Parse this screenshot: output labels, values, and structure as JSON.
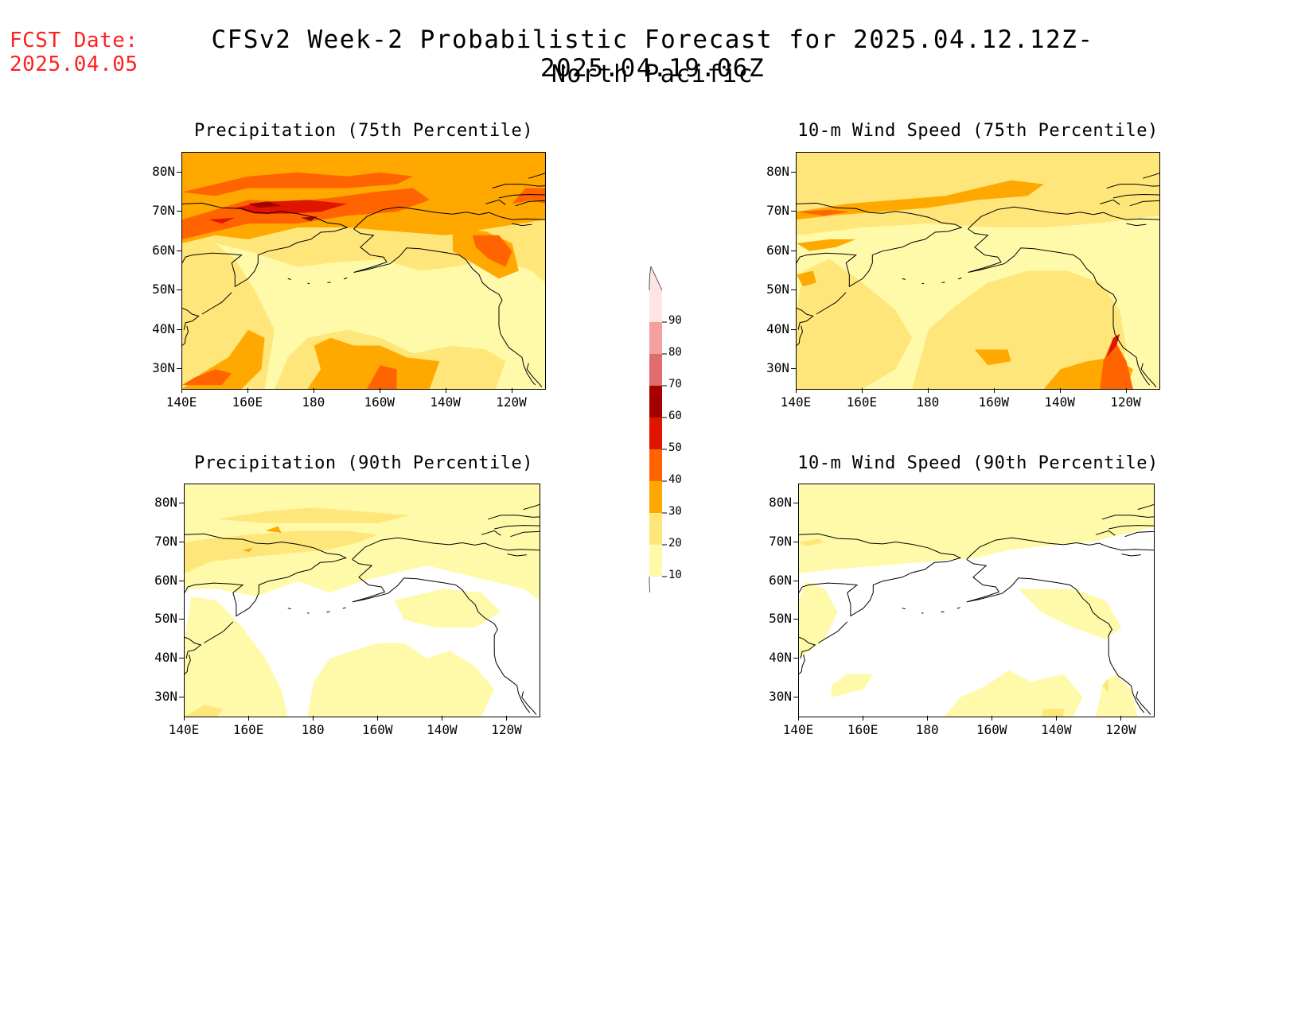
{
  "header": {
    "fcst_label": "FCST Date:",
    "fcst_date": "2025.04.05",
    "title": "CFSv2 Week-2 Probabilistic Forecast for 2025.04.12.12Z-2025.04.19.06Z",
    "subtitle": "North Pacific"
  },
  "panels": [
    {
      "title": "Precipitation (75th Percentile)",
      "variable": "precipitation",
      "percentile": "75th"
    },
    {
      "title": "10-m Wind Speed (75th Percentile)",
      "variable": "wind",
      "percentile": "75th"
    },
    {
      "title": "Precipitation (90th Percentile)",
      "variable": "precipitation",
      "percentile": "90th"
    },
    {
      "title": "10-m Wind Speed (90th Percentile)",
      "variable": "wind",
      "percentile": "90th"
    }
  ],
  "axes": {
    "y_labels": [
      "80N",
      "70N",
      "60N",
      "50N",
      "40N",
      "30N"
    ],
    "x_labels": [
      "140E",
      "160E",
      "180",
      "160W",
      "140W",
      "120W"
    ]
  },
  "colorbar": {
    "levels": [
      "10",
      "20",
      "30",
      "40",
      "50",
      "60",
      "70",
      "80",
      "90"
    ],
    "colors": [
      "#fffaaa",
      "#ffe67a",
      "#ffa800",
      "#ff6400",
      "#e11400",
      "#a50000",
      "#e06c6c",
      "#f4a0a0",
      "#ffe4e4"
    ]
  },
  "colors": {
    "fcst_text": "#ff2020",
    "coast": "#000000",
    "bin_10_20": "#fffaaa",
    "bin_20_30": "#ffe67a",
    "bin_30_40": "#ffa800",
    "bin_40_50": "#ff6400",
    "bin_50_60": "#e11400",
    "bin_60_70": "#a50000"
  }
}
